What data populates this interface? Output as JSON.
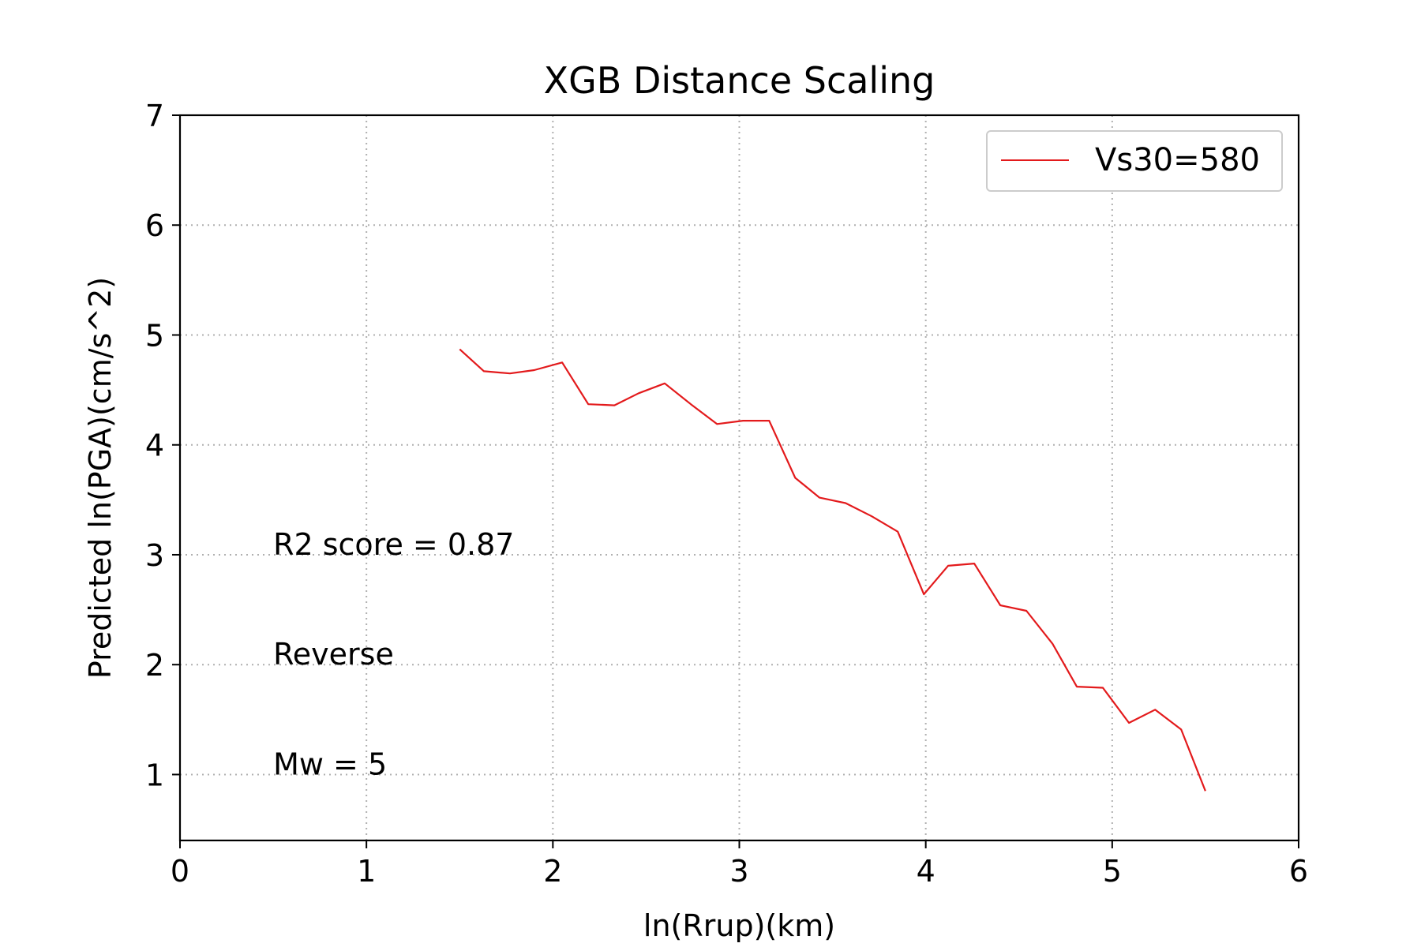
{
  "chart_data": {
    "type": "line",
    "title": "XGB Distance Scaling",
    "xlabel": "ln(Rrup)(km)",
    "ylabel": "Predicted ln(PGA)(cm/s^2)",
    "xlim": [
      0,
      6
    ],
    "ylim": [
      0.4,
      7
    ],
    "xticks": [
      0,
      1,
      2,
      3,
      4,
      5,
      6
    ],
    "yticks": [
      1,
      2,
      3,
      4,
      5,
      6,
      7
    ],
    "grid": true,
    "legend_position": "upper-right",
    "series": [
      {
        "name": "Vs30=580",
        "color": "#e31a1c",
        "x": [
          1.5,
          1.63,
          1.77,
          1.9,
          2.05,
          2.19,
          2.33,
          2.46,
          2.6,
          2.74,
          2.88,
          3.02,
          3.16,
          3.3,
          3.43,
          3.57,
          3.71,
          3.85,
          3.99,
          4.12,
          4.26,
          4.4,
          4.54,
          4.68,
          4.81,
          4.95,
          5.09,
          5.23,
          5.37,
          5.5
        ],
        "y": [
          4.87,
          4.67,
          4.65,
          4.68,
          4.75,
          4.37,
          4.36,
          4.47,
          4.56,
          4.37,
          4.19,
          4.22,
          4.22,
          3.7,
          3.52,
          3.47,
          3.35,
          3.21,
          2.64,
          2.9,
          2.92,
          2.54,
          2.49,
          2.19,
          1.8,
          1.79,
          1.47,
          1.59,
          1.41,
          0.85
        ]
      }
    ],
    "annotations": [
      {
        "text": "R2 score = 0.87",
        "x": 0.5,
        "y": 3.0
      },
      {
        "text": "Reverse",
        "x": 0.5,
        "y": 2.0
      },
      {
        "text": "Mw = 5",
        "x": 0.5,
        "y": 1.0
      }
    ]
  }
}
